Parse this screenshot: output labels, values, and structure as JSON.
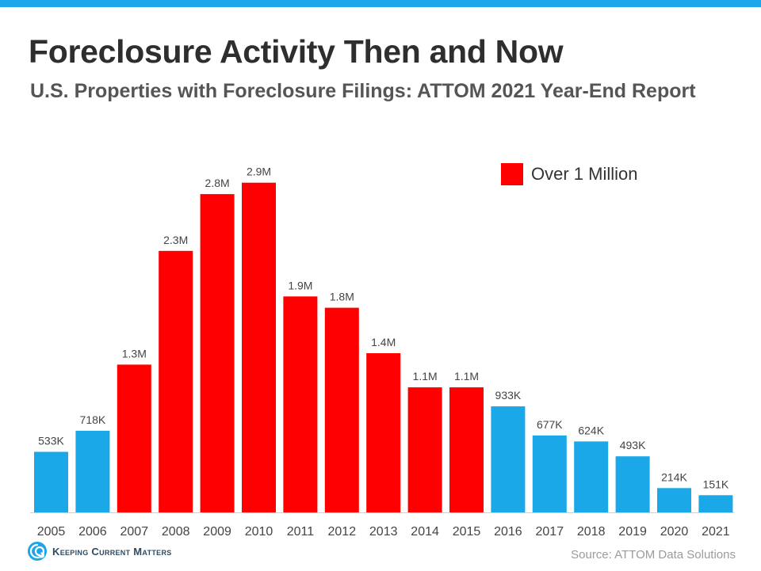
{
  "header": {
    "title": "Foreclosure Activity Then and Now",
    "subtitle": "U.S. Properties with Foreclosure Filings: ATTOM 2021 Year-End Report"
  },
  "legend": {
    "label": "Over 1 Million"
  },
  "colors": {
    "over_million": "#ff0000",
    "under_million": "#1ba8e8",
    "accent": "#1aa6e8"
  },
  "footer": {
    "brand": "Keeping Current Matters",
    "source": "Source: ATTOM Data Solutions",
    "brand_icon": "kcm-swirl-logo-icon"
  },
  "chart_data": {
    "type": "bar",
    "title": "Foreclosure Activity Then and Now",
    "subtitle": "U.S. Properties with Foreclosure Filings: ATTOM 2021 Year-End Report",
    "xlabel": "",
    "ylabel": "",
    "grid": false,
    "legend_position": "top-right",
    "ylim": [
      0,
      3.1
    ],
    "y_units": "millions of properties",
    "categories": [
      "2005",
      "2006",
      "2007",
      "2008",
      "2009",
      "2010",
      "2011",
      "2012",
      "2013",
      "2014",
      "2015",
      "2016",
      "2017",
      "2018",
      "2019",
      "2020",
      "2021"
    ],
    "values": [
      0.533,
      0.718,
      1.3,
      2.3,
      2.8,
      2.9,
      1.9,
      1.8,
      1.4,
      1.1,
      1.1,
      0.933,
      0.677,
      0.624,
      0.493,
      0.214,
      0.151
    ],
    "labels": [
      "533K",
      "718K",
      "1.3M",
      "2.3M",
      "2.8M",
      "2.9M",
      "1.9M",
      "1.8M",
      "1.4M",
      "1.1M",
      "1.1M",
      "933K",
      "677K",
      "624K",
      "493K",
      "214K",
      "151K"
    ],
    "highlight": [
      false,
      false,
      true,
      true,
      true,
      true,
      true,
      true,
      true,
      true,
      true,
      false,
      false,
      false,
      false,
      false,
      false
    ]
  }
}
